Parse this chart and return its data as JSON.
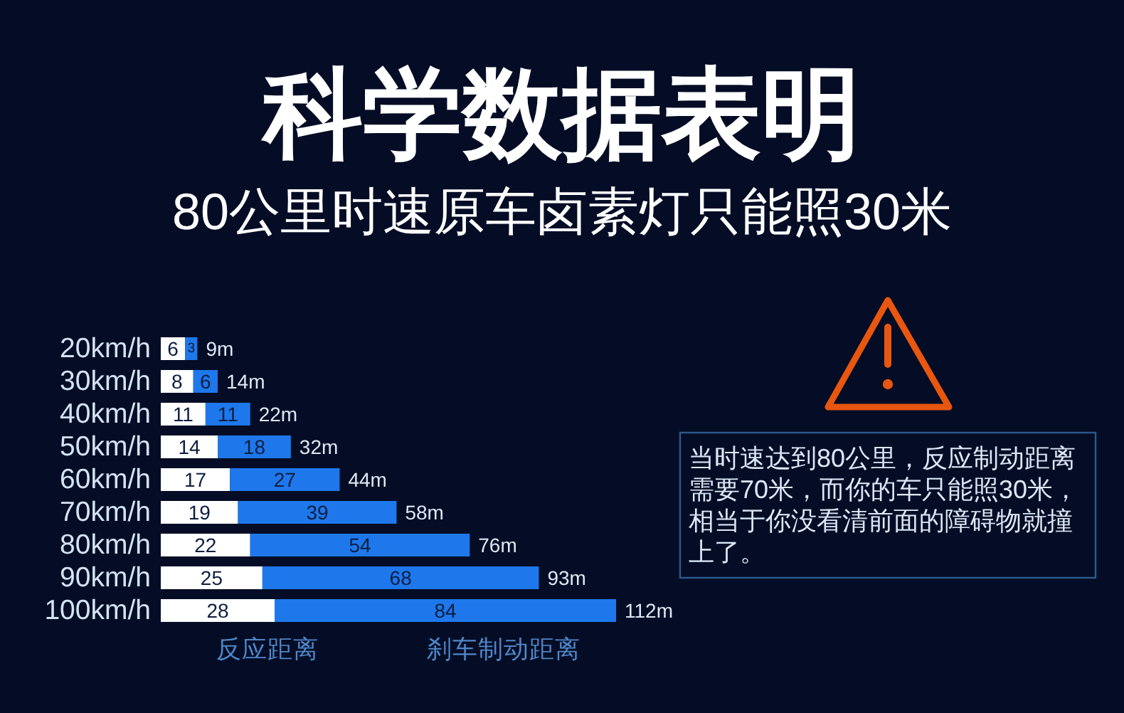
{
  "chart_data": {
    "type": "bar",
    "orientation": "horizontal",
    "stacked": true,
    "title": "科学数据表明",
    "subtitle": "80公里时速原车卤素灯只能照30米",
    "categories": [
      "20km/h",
      "30km/h",
      "40km/h",
      "50km/h",
      "60km/h",
      "70km/h",
      "80km/h",
      "90km/h",
      "100km/h"
    ],
    "series": [
      {
        "name": "反应距离",
        "color": "#ffffff",
        "values": [
          6,
          8,
          11,
          14,
          17,
          19,
          22,
          25,
          28
        ]
      },
      {
        "name": "刹车制动距离",
        "color": "#1e78ec",
        "values": [
          3,
          6,
          11,
          18,
          27,
          39,
          54,
          68,
          84
        ]
      }
    ],
    "data_labels": true,
    "totals": [
      "9m",
      "14m",
      "22m",
      "32m",
      "44m",
      "58m",
      "76m",
      "93m",
      "112m"
    ],
    "legend": "bottom",
    "tick_labels": "y",
    "annotations": [
      "当时速达到80公里，反应制动距离需要70米，而你的车只能照30米，相当于你没看清前面的障碍物就撞上了。"
    ]
  }
}
